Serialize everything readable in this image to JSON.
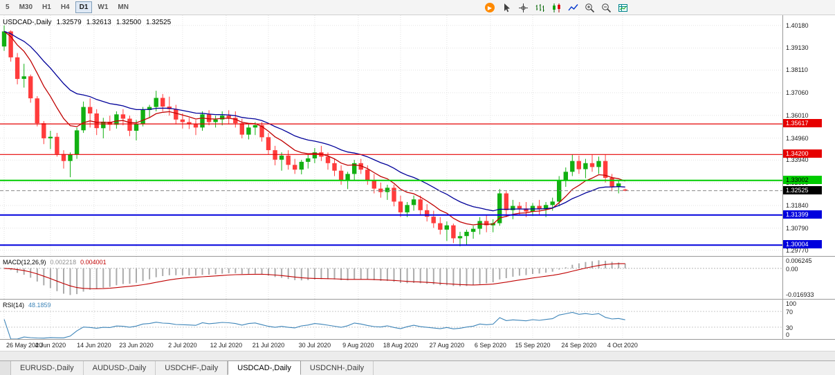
{
  "toolbar": {
    "timeframes": [
      {
        "label": "5",
        "active": false
      },
      {
        "label": "M30",
        "active": false
      },
      {
        "label": "H1",
        "active": false
      },
      {
        "label": "H4",
        "active": false
      },
      {
        "label": "D1",
        "active": true
      },
      {
        "label": "W1",
        "active": false
      },
      {
        "label": "MN",
        "active": false
      }
    ],
    "icons": [
      "autotrading",
      "cursor",
      "crosshair",
      "bar-chart",
      "candlestick-chart",
      "line-chart",
      "zoom-in",
      "zoom-out",
      "indicators"
    ]
  },
  "header": {
    "symbol": "USDCAD-,Daily",
    "open": "1.32579",
    "high": "1.32613",
    "low": "1.32500",
    "close": "1.32525"
  },
  "chart_data": {
    "type": "candlestick",
    "title": "USDCAD-,Daily",
    "ylim": [
      1.295,
      1.4065
    ],
    "up_color": "#12b012",
    "down_color": "#ff3c3c",
    "y_ticks": [
      "1.40180",
      "1.39130",
      "1.38110",
      "1.37060",
      "1.36010",
      "1.34960",
      "1.33940",
      "1.32890",
      "1.31840",
      "1.30790",
      "1.29770"
    ],
    "hlines": [
      {
        "value": 1.35617,
        "label": "1.35617",
        "color": "#e60000",
        "width": 1.2,
        "text": "#ffffff"
      },
      {
        "value": 1.342,
        "label": "1.34200",
        "color": "#e60000",
        "width": 1.2,
        "text": "#ffffff"
      },
      {
        "value": 1.33002,
        "label": "1.33002",
        "color": "#00cc00",
        "width": 2,
        "text": "#000000"
      },
      {
        "value": 1.31399,
        "label": "1.31399",
        "color": "#0000dd",
        "width": 2,
        "text": "#ffffff"
      },
      {
        "value": 1.30004,
        "label": "1.30004",
        "color": "#0000dd",
        "width": 2,
        "text": "#ffffff"
      }
    ],
    "current_price": {
      "value": 1.32525,
      "label": "1.32525",
      "badge_bg": "#000000",
      "badge_fg": "#ffffff"
    },
    "date_ticks": [
      {
        "label": "26 May 2020",
        "i": 0
      },
      {
        "label": "4 Jun 2020",
        "i": 7
      },
      {
        "label": "14 Jun 2020",
        "i": 13.6
      },
      {
        "label": "23 Jun 2020",
        "i": 20
      },
      {
        "label": "2 Jul 2020",
        "i": 27
      },
      {
        "label": "12 Jul 2020",
        "i": 33.6
      },
      {
        "label": "21 Jul 2020",
        "i": 40
      },
      {
        "label": "30 Jul 2020",
        "i": 47
      },
      {
        "label": "9 Aug 2020",
        "i": 53.6
      },
      {
        "label": "18 Aug 2020",
        "i": 60
      },
      {
        "label": "27 Aug 2020",
        "i": 67
      },
      {
        "label": "6 Sep 2020",
        "i": 73.6
      },
      {
        "label": "15 Sep 2020",
        "i": 80
      },
      {
        "label": "24 Sep 2020",
        "i": 87
      },
      {
        "label": "4 Oct 2020",
        "i": 93.6
      }
    ],
    "overlays": [
      {
        "name": "ma-fast",
        "period": 9,
        "color": "#c00000"
      },
      {
        "name": "ma-slow",
        "period": 21,
        "color": "#000099"
      }
    ],
    "ohlc": [
      [
        1.392,
        1.4018,
        1.39,
        1.399
      ],
      [
        1.399,
        1.3995,
        1.385,
        1.387
      ],
      [
        1.387,
        1.389,
        1.3745,
        1.377
      ],
      [
        1.377,
        1.384,
        1.373,
        1.3782
      ],
      [
        1.3782,
        1.379,
        1.366,
        1.368
      ],
      [
        1.368,
        1.369,
        1.355,
        1.3565
      ],
      [
        1.3565,
        1.3575,
        1.3468,
        1.3495
      ],
      [
        1.3495,
        1.353,
        1.3445,
        1.3502
      ],
      [
        1.3502,
        1.352,
        1.341,
        1.3422
      ],
      [
        1.3422,
        1.344,
        1.3355,
        1.339
      ],
      [
        1.339,
        1.343,
        1.3315,
        1.342
      ],
      [
        1.342,
        1.3545,
        1.34,
        1.3532
      ],
      [
        1.3532,
        1.3665,
        1.352,
        1.364
      ],
      [
        1.364,
        1.368,
        1.3545,
        1.361
      ],
      [
        1.361,
        1.363,
        1.351,
        1.3542
      ],
      [
        1.3542,
        1.359,
        1.3495,
        1.3572
      ],
      [
        1.3572,
        1.36,
        1.353,
        1.3558
      ],
      [
        1.3558,
        1.362,
        1.354,
        1.3606
      ],
      [
        1.3606,
        1.363,
        1.3555,
        1.3586
      ],
      [
        1.3586,
        1.36,
        1.3505,
        1.353
      ],
      [
        1.353,
        1.358,
        1.3485,
        1.3562
      ],
      [
        1.3562,
        1.364,
        1.355,
        1.3626
      ],
      [
        1.3626,
        1.365,
        1.359,
        1.364
      ],
      [
        1.364,
        1.3715,
        1.362,
        1.3682
      ],
      [
        1.3682,
        1.37,
        1.362,
        1.3642
      ],
      [
        1.3642,
        1.3688,
        1.36,
        1.363
      ],
      [
        1.363,
        1.365,
        1.356,
        1.3582
      ],
      [
        1.3582,
        1.361,
        1.354,
        1.357
      ],
      [
        1.357,
        1.359,
        1.3538,
        1.356
      ],
      [
        1.356,
        1.358,
        1.351,
        1.3545
      ],
      [
        1.3545,
        1.362,
        1.353,
        1.3606
      ],
      [
        1.3606,
        1.3625,
        1.3555,
        1.357
      ],
      [
        1.357,
        1.36,
        1.3545,
        1.3582
      ],
      [
        1.3582,
        1.362,
        1.3555,
        1.36
      ],
      [
        1.36,
        1.3625,
        1.356,
        1.359
      ],
      [
        1.359,
        1.362,
        1.3545,
        1.3565
      ],
      [
        1.3565,
        1.3585,
        1.3495,
        1.3512
      ],
      [
        1.3512,
        1.356,
        1.349,
        1.3545
      ],
      [
        1.3545,
        1.357,
        1.351,
        1.3556
      ],
      [
        1.3556,
        1.357,
        1.348,
        1.35
      ],
      [
        1.35,
        1.352,
        1.342,
        1.344
      ],
      [
        1.344,
        1.346,
        1.337,
        1.3396
      ],
      [
        1.3396,
        1.343,
        1.3345,
        1.3415
      ],
      [
        1.3415,
        1.344,
        1.335,
        1.3372
      ],
      [
        1.3372,
        1.34,
        1.333,
        1.335
      ],
      [
        1.335,
        1.3395,
        1.3328,
        1.3386
      ],
      [
        1.3386,
        1.342,
        1.3355,
        1.3402
      ],
      [
        1.3402,
        1.345,
        1.338,
        1.343
      ],
      [
        1.343,
        1.346,
        1.339,
        1.341
      ],
      [
        1.341,
        1.343,
        1.335,
        1.338
      ],
      [
        1.338,
        1.34,
        1.332,
        1.3345
      ],
      [
        1.3345,
        1.337,
        1.328,
        1.3302
      ],
      [
        1.3302,
        1.334,
        1.326,
        1.333
      ],
      [
        1.333,
        1.3395,
        1.33,
        1.338
      ],
      [
        1.338,
        1.34,
        1.333,
        1.335
      ],
      [
        1.335,
        1.337,
        1.328,
        1.3302
      ],
      [
        1.3302,
        1.333,
        1.324,
        1.3262
      ],
      [
        1.3262,
        1.329,
        1.322,
        1.3246
      ],
      [
        1.3246,
        1.328,
        1.321,
        1.3266
      ],
      [
        1.3266,
        1.328,
        1.318,
        1.3202
      ],
      [
        1.3202,
        1.323,
        1.313,
        1.3152
      ],
      [
        1.3152,
        1.32,
        1.313,
        1.3186
      ],
      [
        1.3186,
        1.323,
        1.316,
        1.3212
      ],
      [
        1.3212,
        1.323,
        1.314,
        1.3162
      ],
      [
        1.3162,
        1.319,
        1.311,
        1.3132
      ],
      [
        1.3132,
        1.316,
        1.308,
        1.3102
      ],
      [
        1.3102,
        1.313,
        1.305,
        1.3072
      ],
      [
        1.3072,
        1.311,
        1.302,
        1.3092
      ],
      [
        1.3092,
        1.31,
        1.301,
        1.3032
      ],
      [
        1.3032,
        1.3062,
        1.2995,
        1.3042
      ],
      [
        1.3042,
        1.3072,
        1.3002,
        1.3062
      ],
      [
        1.3062,
        1.309,
        1.303,
        1.3076
      ],
      [
        1.3076,
        1.313,
        1.305,
        1.3112
      ],
      [
        1.3112,
        1.314,
        1.306,
        1.3092
      ],
      [
        1.3092,
        1.312,
        1.306,
        1.3102
      ],
      [
        1.3102,
        1.326,
        1.309,
        1.324
      ],
      [
        1.324,
        1.325,
        1.313,
        1.3162
      ],
      [
        1.3162,
        1.321,
        1.312,
        1.3182
      ],
      [
        1.3182,
        1.32,
        1.314,
        1.317
      ],
      [
        1.317,
        1.32,
        1.313,
        1.3156
      ],
      [
        1.3156,
        1.3195,
        1.3135,
        1.3182
      ],
      [
        1.3182,
        1.321,
        1.314,
        1.3166
      ],
      [
        1.3166,
        1.32,
        1.313,
        1.3186
      ],
      [
        1.3186,
        1.322,
        1.316,
        1.3202
      ],
      [
        1.3202,
        1.332,
        1.318,
        1.33
      ],
      [
        1.33,
        1.336,
        1.327,
        1.334
      ],
      [
        1.334,
        1.342,
        1.332,
        1.339
      ],
      [
        1.339,
        1.3415,
        1.333,
        1.3352
      ],
      [
        1.3352,
        1.34,
        1.331,
        1.338
      ],
      [
        1.338,
        1.342,
        1.334,
        1.3362
      ],
      [
        1.3362,
        1.341,
        1.333,
        1.339
      ],
      [
        1.339,
        1.342,
        1.329,
        1.3312
      ],
      [
        1.3312,
        1.333,
        1.325,
        1.3272
      ],
      [
        1.3272,
        1.33,
        1.324,
        1.3286
      ],
      [
        1.32579,
        1.32613,
        1.325,
        1.32525
      ]
    ],
    "indicators": {
      "macd": {
        "label": "MACD(12,26,9)",
        "value_main": "0.002218",
        "value_signal": "0.004001",
        "params": [
          12,
          26,
          9
        ],
        "range": [
          -0.017,
          0.0065
        ],
        "axis": [
          "0.006245",
          "0.00",
          "-0.016933"
        ],
        "hist_color": "#ababab",
        "signal_color": "#c00000"
      },
      "rsi": {
        "label": "RSI(14)",
        "value": "48.1859",
        "period": 14,
        "range": [
          0,
          100
        ],
        "levels": [
          70,
          30
        ],
        "axis": [
          "100",
          "70",
          "30",
          "0"
        ],
        "line_color": "#3c84b8"
      }
    }
  },
  "tabs": {
    "items": [
      {
        "label": "EURUSD-,Daily",
        "active": false
      },
      {
        "label": "AUDUSD-,Daily",
        "active": false
      },
      {
        "label": "USDCHF-,Daily",
        "active": false
      },
      {
        "label": "USDCAD-,Daily",
        "active": true
      },
      {
        "label": "USDCNH-,Daily",
        "active": false
      }
    ]
  }
}
